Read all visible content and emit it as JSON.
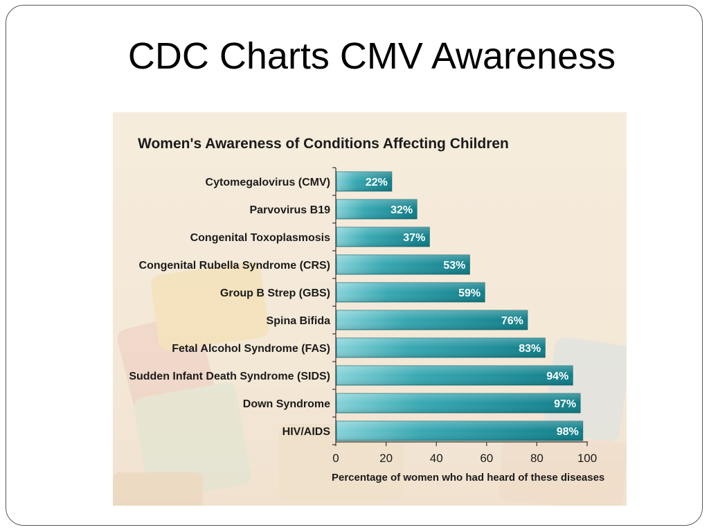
{
  "slide": {
    "title": "CDC Charts CMV Awareness"
  },
  "chart_data": {
    "type": "bar",
    "orientation": "horizontal",
    "title": "Women's Awareness of Conditions Affecting Children",
    "xlabel": "Percentage of women who had heard of these diseases",
    "ylabel": "",
    "xlim": [
      0,
      100
    ],
    "xticks": [
      "0",
      "20",
      "40",
      "60",
      "80",
      "100"
    ],
    "grid": false,
    "categories": [
      "Cytomegalovirus (CMV)",
      "Parvovirus B19",
      "Congenital Toxoplasmosis",
      "Congenital Rubella Syndrome (CRS)",
      "Group B Strep (GBS)",
      "Spina Bifida",
      "Fetal Alcohol Syndrome (FAS)",
      "Sudden Infant Death Syndrome (SIDS)",
      "Down Syndrome",
      "HIV/AIDS"
    ],
    "values": [
      22,
      32,
      37,
      53,
      59,
      76,
      83,
      94,
      97,
      98
    ],
    "value_labels": [
      "22%",
      "32%",
      "37%",
      "53%",
      "59%",
      "76%",
      "83%",
      "94%",
      "97%",
      "98%"
    ],
    "colors": {
      "bar_light": "#7ecfd6",
      "bar_mid": "#2aa2ad",
      "bar_dark": "#0f7b86",
      "background": "#f6ebd9"
    }
  }
}
